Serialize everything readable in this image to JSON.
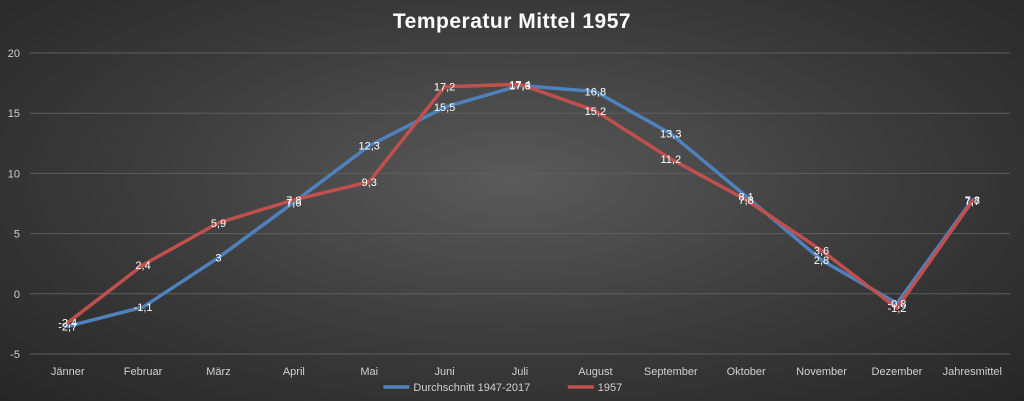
{
  "chart_data": {
    "type": "line",
    "title": "Temperatur Mittel 1957",
    "categories": [
      "Jänner",
      "Februar",
      "März",
      "April",
      "Mai",
      "Juni",
      "Juli",
      "August",
      "September",
      "Oktober",
      "November",
      "Dezember",
      "Jahresmittel"
    ],
    "ylim": [
      -5,
      20
    ],
    "yticks": [
      -5,
      0,
      5,
      10,
      15,
      20
    ],
    "grid": true,
    "legend_position": "bottom",
    "series": [
      {
        "name": "Durchschnitt 1947-2017",
        "color": "#4f81bd",
        "values": [
          -2.7,
          -1.1,
          3,
          7.6,
          12.3,
          15.5,
          17.3,
          16.8,
          13.3,
          8.1,
          2.8,
          -0.8,
          7.8
        ],
        "labels": [
          "-2,7",
          "-1,1",
          "3",
          "7,6",
          "12,3",
          "15,5",
          "17,3",
          "16,8",
          "13,3",
          "8,1",
          "2,8",
          "-0,8",
          "7,8"
        ]
      },
      {
        "name": "1957",
        "color": "#c0504d",
        "values": [
          -2.4,
          2.4,
          5.9,
          7.8,
          9.3,
          17.2,
          17.4,
          15.2,
          11.2,
          7.8,
          3.6,
          -1.2,
          7.7
        ],
        "labels": [
          "-2,4",
          "2,4",
          "5,9",
          "7,8",
          "9,3",
          "17,2",
          "17,4",
          "15,2",
          "11,2",
          "7,8",
          "3,6",
          "-1,2",
          "7,7"
        ]
      }
    ]
  }
}
